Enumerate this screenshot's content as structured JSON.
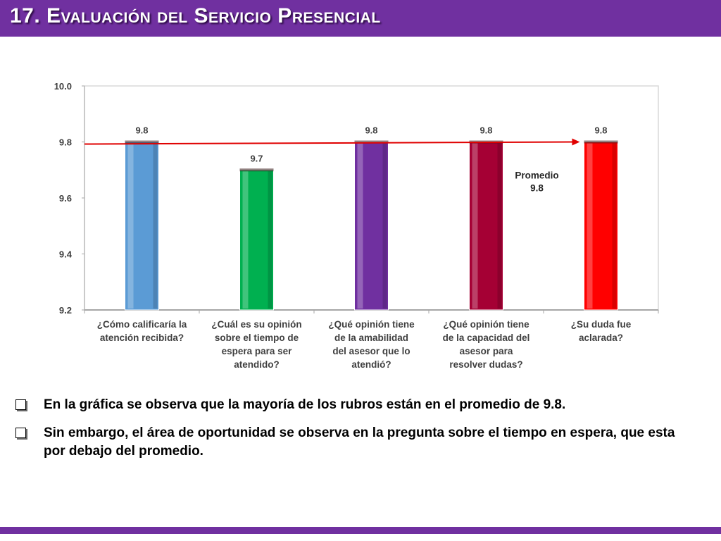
{
  "title": "17. Evaluación del Servicio Presencial",
  "chart_data": {
    "type": "bar",
    "categories": [
      [
        "¿Cómo calificaría la",
        "atención recibida?"
      ],
      [
        "¿Cuál es su opinión",
        "sobre el tiempo de",
        "espera para ser",
        "atendido?"
      ],
      [
        "¿Qué opinión tiene",
        "de la amabilidad",
        "del asesor que lo",
        "atendió?"
      ],
      [
        "¿Qué opinión tiene",
        "de la capacidad del",
        "asesor para",
        "resolver dudas?"
      ],
      [
        "¿Su duda fue",
        "aclarada?"
      ]
    ],
    "values": [
      9.8,
      9.7,
      9.8,
      9.8,
      9.8
    ],
    "value_labels": [
      "9.8",
      "9.7",
      "9.8",
      "9.8",
      "9.8"
    ],
    "bar_colors": [
      "#5b9bd5",
      "#00b050",
      "#7030a0",
      "#a50034",
      "#ff0000"
    ],
    "ylim": [
      9.2,
      10.0
    ],
    "yticks": [
      9.2,
      9.4,
      9.6,
      9.8,
      10.0
    ],
    "ytick_labels": [
      "9.2",
      "9.4",
      "9.6",
      "9.8",
      "10.0"
    ],
    "average": 9.8,
    "average_line_color": "#e00000",
    "annotation": [
      "Promedio",
      "9.8"
    ],
    "grid": false
  },
  "bullets": [
    "En la gráfica se observa que  la mayoría de los rubros están en el promedio de 9.8.",
    "Sin embargo, el área de oportunidad se observa en la pregunta sobre el tiempo en espera, que esta por debajo del promedio."
  ],
  "colors": {
    "accent": "#7030a0"
  }
}
